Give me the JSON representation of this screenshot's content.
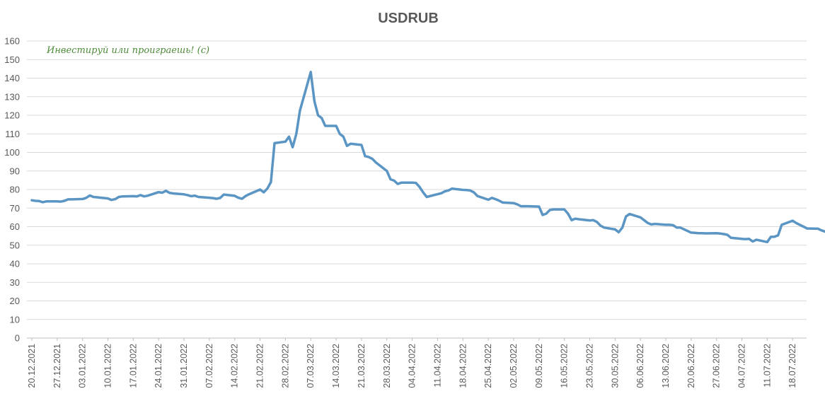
{
  "chart_data": {
    "type": "line",
    "title": "USDRUB",
    "annotation": "Инвестируй или проиграешь! (с)",
    "ylim": [
      0,
      160
    ],
    "yticks": [
      0,
      10,
      20,
      30,
      40,
      50,
      60,
      70,
      80,
      90,
      100,
      110,
      120,
      130,
      140,
      150,
      160
    ],
    "grid": true,
    "legend": "none",
    "series_color": "#5b95c4",
    "x_tick_labels": [
      "20.12.2021",
      "27.12.2021",
      "03.01.2022",
      "10.01.2022",
      "17.01.2022",
      "24.01.2022",
      "31.01.2022",
      "07.02.2022",
      "14.02.2022",
      "21.02.2022",
      "28.02.2022",
      "07.03.2022",
      "14.03.2022",
      "21.03.2022",
      "28.03.2022",
      "04.04.2022",
      "11.04.2022",
      "18.04.2022",
      "25.04.2022",
      "02.05.2022",
      "09.05.2022",
      "16.05.2022",
      "23.05.2022",
      "30.05.2022",
      "06.06.2022",
      "13.06.2022",
      "20.06.2022",
      "27.06.2022",
      "04.07.2022",
      "11.07.2022",
      "18.07.2022"
    ],
    "series": [
      {
        "points": [
          [
            "20.12.2021",
            74.2
          ],
          [
            "21.12.2021",
            73.9
          ],
          [
            "22.12.2021",
            73.8
          ],
          [
            "23.12.2021",
            73.2
          ],
          [
            "24.12.2021",
            73.6
          ],
          [
            "27.12.2021",
            73.6
          ],
          [
            "28.12.2021",
            73.5
          ],
          [
            "29.12.2021",
            73.9
          ],
          [
            "30.12.2021",
            74.7
          ],
          [
            "31.12.2021",
            74.7
          ],
          [
            "03.01.2022",
            74.9
          ],
          [
            "04.01.2022",
            75.5
          ],
          [
            "05.01.2022",
            76.8
          ],
          [
            "06.01.2022",
            76.0
          ],
          [
            "07.01.2022",
            75.8
          ],
          [
            "10.01.2022",
            75.2
          ],
          [
            "11.01.2022",
            74.4
          ],
          [
            "12.01.2022",
            74.8
          ],
          [
            "13.01.2022",
            76.0
          ],
          [
            "14.01.2022",
            76.3
          ],
          [
            "17.01.2022",
            76.4
          ],
          [
            "18.01.2022",
            76.3
          ],
          [
            "19.01.2022",
            77.0
          ],
          [
            "20.01.2022",
            76.3
          ],
          [
            "21.01.2022",
            76.7
          ],
          [
            "24.01.2022",
            78.6
          ],
          [
            "25.01.2022",
            78.3
          ],
          [
            "26.01.2022",
            79.3
          ],
          [
            "27.01.2022",
            78.2
          ],
          [
            "28.01.2022",
            77.9
          ],
          [
            "31.01.2022",
            77.4
          ],
          [
            "01.02.2022",
            77.0
          ],
          [
            "02.02.2022",
            76.4
          ],
          [
            "03.02.2022",
            76.7
          ],
          [
            "04.02.2022",
            76.0
          ],
          [
            "07.02.2022",
            75.6
          ],
          [
            "08.02.2022",
            75.4
          ],
          [
            "09.02.2022",
            75.0
          ],
          [
            "10.02.2022",
            75.5
          ],
          [
            "11.02.2022",
            77.3
          ],
          [
            "14.02.2022",
            76.6
          ],
          [
            "15.02.2022",
            75.6
          ],
          [
            "16.02.2022",
            75.0
          ],
          [
            "17.02.2022",
            76.5
          ],
          [
            "18.02.2022",
            77.5
          ],
          [
            "21.02.2022",
            80.0
          ],
          [
            "22.02.2022",
            78.5
          ],
          [
            "23.02.2022",
            80.5
          ],
          [
            "24.02.2022",
            84.0
          ],
          [
            "25.02.2022",
            105.0
          ],
          [
            "28.02.2022",
            105.8
          ],
          [
            "01.03.2022",
            108.5
          ],
          [
            "02.03.2022",
            102.8
          ],
          [
            "03.03.2022",
            110.0
          ],
          [
            "04.03.2022",
            122.5
          ],
          [
            "07.03.2022",
            143.3
          ],
          [
            "08.03.2022",
            127.5
          ],
          [
            "09.03.2022",
            120.0
          ],
          [
            "10.03.2022",
            118.5
          ],
          [
            "11.03.2022",
            114.3
          ],
          [
            "14.03.2022",
            114.3
          ],
          [
            "15.03.2022",
            110.0
          ],
          [
            "16.03.2022",
            108.5
          ],
          [
            "17.03.2022",
            103.5
          ],
          [
            "18.03.2022",
            104.7
          ],
          [
            "21.03.2022",
            104.0
          ],
          [
            "22.03.2022",
            98.0
          ],
          [
            "23.03.2022",
            97.5
          ],
          [
            "24.03.2022",
            96.5
          ],
          [
            "25.03.2022",
            94.5
          ],
          [
            "28.03.2022",
            90.0
          ],
          [
            "29.03.2022",
            85.5
          ],
          [
            "30.03.2022",
            84.8
          ],
          [
            "31.03.2022",
            83.0
          ],
          [
            "01.04.2022",
            83.7
          ],
          [
            "04.04.2022",
            83.7
          ],
          [
            "05.04.2022",
            83.6
          ],
          [
            "06.04.2022",
            81.5
          ],
          [
            "07.04.2022",
            78.5
          ],
          [
            "08.04.2022",
            76.0
          ],
          [
            "11.04.2022",
            77.5
          ],
          [
            "12.04.2022",
            78.0
          ],
          [
            "13.04.2022",
            79.0
          ],
          [
            "14.04.2022",
            79.5
          ],
          [
            "15.04.2022",
            80.5
          ],
          [
            "18.04.2022",
            79.8
          ],
          [
            "19.04.2022",
            79.7
          ],
          [
            "20.04.2022",
            79.5
          ],
          [
            "21.04.2022",
            78.5
          ],
          [
            "22.04.2022",
            76.5
          ],
          [
            "25.04.2022",
            74.5
          ],
          [
            "26.04.2022",
            75.5
          ],
          [
            "27.04.2022",
            74.8
          ],
          [
            "28.04.2022",
            74.0
          ],
          [
            "29.04.2022",
            73.0
          ],
          [
            "02.05.2022",
            72.7
          ],
          [
            "03.05.2022",
            72.0
          ],
          [
            "04.05.2022",
            71.0
          ],
          [
            "05.05.2022",
            71.0
          ],
          [
            "06.05.2022",
            71.0
          ],
          [
            "09.05.2022",
            70.8
          ],
          [
            "10.05.2022",
            66.3
          ],
          [
            "11.05.2022",
            67.0
          ],
          [
            "12.05.2022",
            69.0
          ],
          [
            "13.05.2022",
            69.3
          ],
          [
            "16.05.2022",
            69.3
          ],
          [
            "17.05.2022",
            67.0
          ],
          [
            "18.05.2022",
            63.5
          ],
          [
            "19.05.2022",
            64.3
          ],
          [
            "20.05.2022",
            64.0
          ],
          [
            "23.05.2022",
            63.3
          ],
          [
            "24.05.2022",
            63.5
          ],
          [
            "25.05.2022",
            62.5
          ],
          [
            "26.05.2022",
            60.5
          ],
          [
            "27.05.2022",
            59.5
          ],
          [
            "30.05.2022",
            58.5
          ],
          [
            "31.05.2022",
            57.0
          ],
          [
            "01.06.2022",
            59.5
          ],
          [
            "02.06.2022",
            65.5
          ],
          [
            "03.06.2022",
            66.8
          ],
          [
            "06.06.2022",
            65.0
          ],
          [
            "07.06.2022",
            63.5
          ],
          [
            "08.06.2022",
            62.0
          ],
          [
            "09.06.2022",
            61.2
          ],
          [
            "10.06.2022",
            61.5
          ],
          [
            "13.06.2022",
            61.0
          ],
          [
            "14.06.2022",
            61.0
          ],
          [
            "15.06.2022",
            60.8
          ],
          [
            "16.06.2022",
            59.5
          ],
          [
            "17.06.2022",
            59.5
          ],
          [
            "20.06.2022",
            56.8
          ],
          [
            "21.06.2022",
            56.7
          ],
          [
            "22.06.2022",
            56.5
          ],
          [
            "23.06.2022",
            56.5
          ],
          [
            "24.06.2022",
            56.4
          ],
          [
            "27.06.2022",
            56.5
          ],
          [
            "28.06.2022",
            56.3
          ],
          [
            "29.06.2022",
            56.0
          ],
          [
            "30.06.2022",
            55.6
          ],
          [
            "01.07.2022",
            54.0
          ],
          [
            "04.07.2022",
            53.4
          ],
          [
            "05.07.2022",
            53.3
          ],
          [
            "06.07.2022",
            53.4
          ],
          [
            "07.07.2022",
            52.0
          ],
          [
            "08.07.2022",
            53.0
          ],
          [
            "11.07.2022",
            51.7
          ],
          [
            "12.07.2022",
            54.5
          ],
          [
            "13.07.2022",
            54.6
          ],
          [
            "14.07.2022",
            55.3
          ],
          [
            "15.07.2022",
            61.0
          ],
          [
            "18.07.2022",
            63.2
          ],
          [
            "19.07.2022",
            62.0
          ],
          [
            "20.07.2022",
            61.0
          ],
          [
            "21.07.2022",
            60.0
          ],
          [
            "22.07.2022",
            59.0
          ],
          [
            "25.07.2022",
            58.9
          ],
          [
            "26.07.2022",
            58.0
          ],
          [
            "27.07.2022",
            57.3
          ],
          [
            "28.07.2022",
            57.0
          ],
          [
            "29.07.2022",
            56.8
          ],
          [
            "01.08.2022",
            56.5
          ],
          [
            "02.08.2022",
            55.5
          ],
          [
            "03.08.2022",
            55.0
          ]
        ]
      }
    ]
  }
}
